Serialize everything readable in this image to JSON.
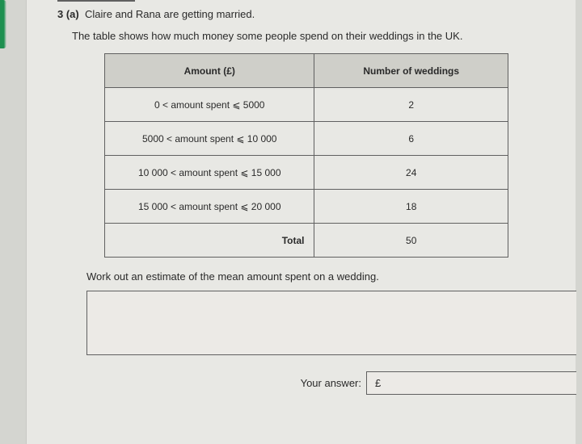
{
  "question": {
    "number": "3 (a)",
    "prompt": "Claire and Rana are getting married.",
    "context": "The table shows how much money some people spend on their weddings in the UK.",
    "instruction": "Work out an estimate of the mean amount spent on a wedding."
  },
  "table": {
    "headers": {
      "amount": "Amount (£)",
      "count": "Number of weddings"
    },
    "rows": [
      {
        "range": "0 < amount spent ⩽ 5000",
        "count": "2"
      },
      {
        "range": "5000 < amount spent ⩽ 10 000",
        "count": "6"
      },
      {
        "range": "10 000 < amount spent ⩽ 15 000",
        "count": "24"
      },
      {
        "range": "15 000 < amount spent ⩽ 20 000",
        "count": "18"
      }
    ],
    "total_label": "Total",
    "total_value": "50"
  },
  "answer": {
    "label": "Your answer:",
    "currency": "£"
  },
  "colors": {
    "page_bg": "#e8e8e4",
    "outer_bg": "#d4d5d0",
    "border": "#606060",
    "header_bg": "#cfcfc9",
    "text": "#2a2a2a",
    "accent": "#1e9050"
  }
}
